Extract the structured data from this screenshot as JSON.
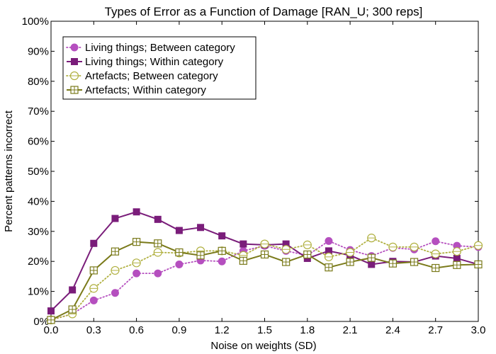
{
  "chart_data": {
    "type": "line",
    "title": "Types of Error as a Function of Damage [RAN_U; 300 reps]",
    "xlabel": "Noise on weights (SD)",
    "ylabel": "Percent patterns incorrect",
    "xlim": [
      0,
      3.0
    ],
    "ylim": [
      0,
      100
    ],
    "x_ticks": [
      "0.0",
      "0.3",
      "0.6",
      "0.9",
      "1.2",
      "1.5",
      "1.8",
      "2.1",
      "2.4",
      "2.7",
      "3.0"
    ],
    "y_ticks": [
      "0%",
      "10%",
      "20%",
      "30%",
      "40%",
      "50%",
      "60%",
      "70%",
      "80%",
      "90%",
      "100%"
    ],
    "grid": false,
    "legend_position": "top-left",
    "x": [
      0.0,
      0.15,
      0.3,
      0.45,
      0.6,
      0.75,
      0.9,
      1.05,
      1.2,
      1.35,
      1.5,
      1.65,
      1.8,
      1.95,
      2.1,
      2.25,
      2.4,
      2.55,
      2.7,
      2.85,
      3.0
    ],
    "series": [
      {
        "name": "Living things; Between category",
        "color": "#b54fbf",
        "style": "dotted",
        "marker": "filled-circle",
        "values": [
          0.5,
          2.5,
          7.0,
          9.5,
          16.0,
          16.0,
          19.0,
          20.3,
          20.0,
          23.5,
          25.2,
          23.5,
          22.0,
          26.8,
          23.8,
          21.8,
          24.5,
          24.0,
          26.7,
          25.2,
          24.8
        ]
      },
      {
        "name": "Living things; Within category",
        "color": "#7a1d7a",
        "style": "solid",
        "marker": "filled-square",
        "values": [
          3.5,
          10.5,
          26.0,
          34.3,
          36.5,
          34.0,
          30.3,
          31.3,
          28.5,
          25.8,
          25.5,
          25.8,
          21.0,
          23.5,
          22.0,
          19.0,
          20.0,
          19.8,
          21.8,
          21.0,
          19.0
        ]
      },
      {
        "name": "Artefacts; Between category",
        "color": "#b0b040",
        "style": "dotted",
        "marker": "open-circle",
        "values": [
          0.5,
          2.5,
          11.0,
          17.0,
          19.5,
          23.0,
          22.8,
          23.5,
          23.5,
          22.0,
          25.8,
          24.0,
          25.5,
          21.5,
          23.0,
          27.8,
          24.8,
          24.8,
          22.5,
          23.3,
          25.3
        ]
      },
      {
        "name": "Artefacts; Within category",
        "color": "#7a7a1a",
        "style": "solid",
        "marker": "open-square-cross",
        "values": [
          0.5,
          4.0,
          17.0,
          23.3,
          26.5,
          26.0,
          23.0,
          22.0,
          23.5,
          20.2,
          22.3,
          19.8,
          22.3,
          18.0,
          19.8,
          21.2,
          19.3,
          19.8,
          17.8,
          18.8,
          19.0
        ]
      }
    ]
  }
}
